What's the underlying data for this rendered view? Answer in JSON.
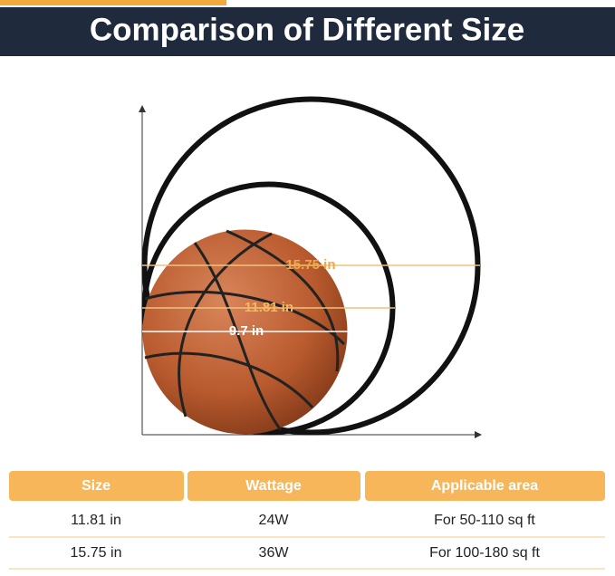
{
  "header": {
    "title": "Comparison of Different Size"
  },
  "diagram": {
    "labels": [
      "15.75 in",
      "11.81 in",
      "9.7 in"
    ]
  },
  "table": {
    "headers": [
      "Size",
      "Wattage",
      "Applicable area"
    ],
    "rows": [
      [
        "11.81 in",
        "24W",
        "For 50-110 sq ft"
      ],
      [
        "15.75 in",
        "36W",
        "For 100-180 sq ft"
      ]
    ]
  }
}
